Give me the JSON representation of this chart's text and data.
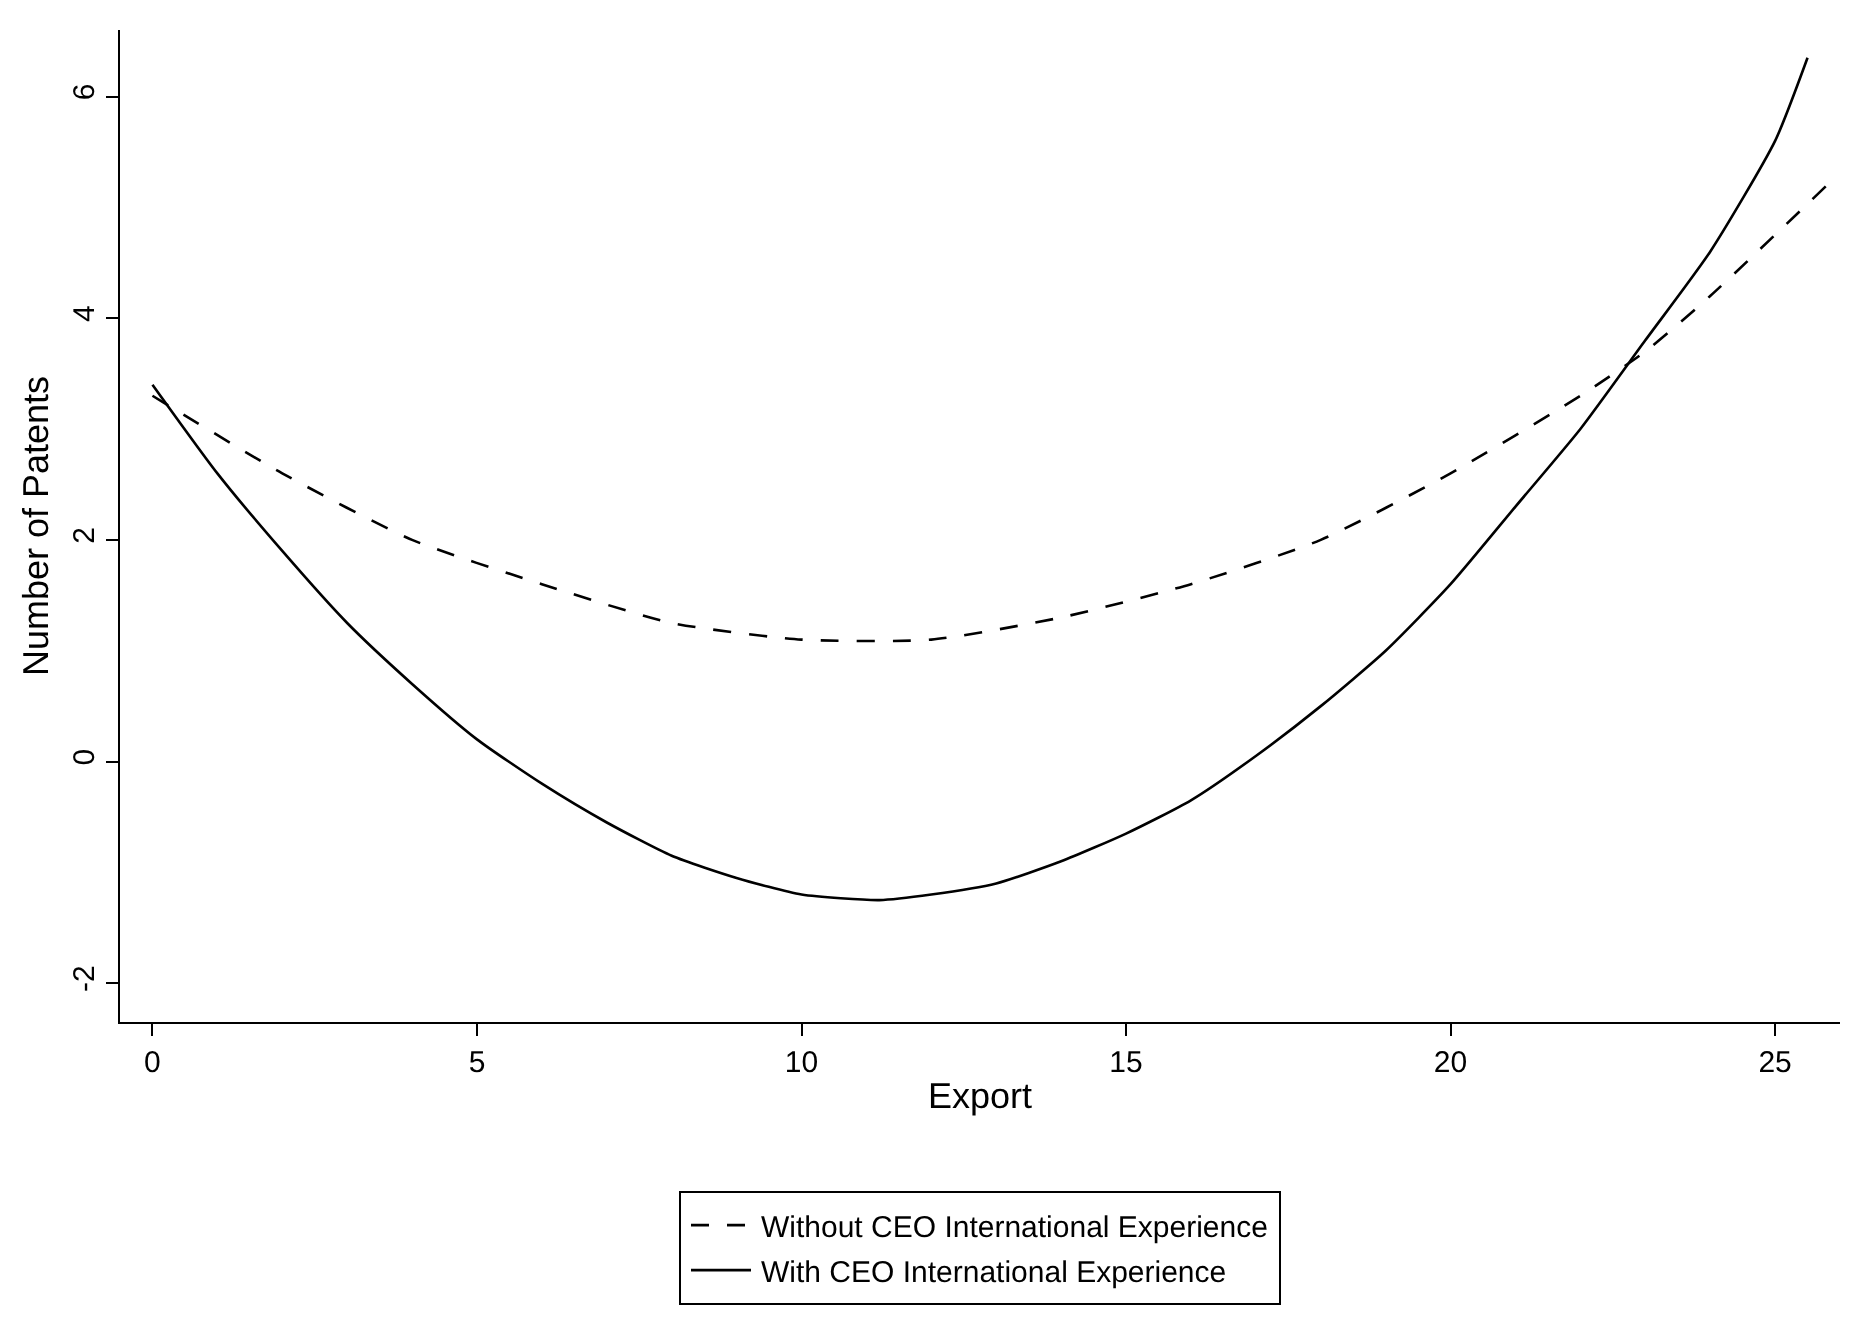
{
  "chart_data": {
    "type": "line",
    "xlabel": "Export",
    "ylabel": "Number of Patents",
    "xlim": [
      -0.5,
      26
    ],
    "xticks": [
      0,
      5,
      10,
      15,
      20,
      25
    ],
    "ylim": [
      -2.35,
      6.6
    ],
    "yticks": [
      -2,
      0,
      2,
      4,
      6
    ],
    "legend": "bottom",
    "series": [
      {
        "name": "Without CEO International Experience",
        "color": "#000000",
        "line_style": "dashed",
        "x": [
          0,
          2,
          4,
          6,
          8,
          10,
          12,
          14,
          16,
          18,
          20,
          22,
          23,
          24,
          25.8
        ],
        "values": [
          3.3,
          2.6,
          2.0,
          1.6,
          1.25,
          1.1,
          1.1,
          1.3,
          1.6,
          2.0,
          2.6,
          3.3,
          3.7,
          4.2,
          5.2
        ]
      },
      {
        "name": "With CEO International Experience",
        "color": "#000000",
        "line_style": "solid",
        "x": [
          0,
          1,
          2,
          3,
          4,
          5,
          6,
          7,
          8,
          9,
          10,
          11.2,
          12,
          13,
          14,
          15,
          16,
          17,
          18,
          19,
          20,
          21,
          22,
          23,
          24,
          25,
          25.5
        ],
        "values": [
          3.4,
          2.6,
          1.9,
          1.25,
          0.7,
          0.2,
          -0.2,
          -0.55,
          -0.85,
          -1.05,
          -1.2,
          -1.25,
          -1.2,
          -1.1,
          -0.9,
          -0.65,
          -0.35,
          0.05,
          0.5,
          1.0,
          1.6,
          2.3,
          3.0,
          3.8,
          4.6,
          5.6,
          6.35
        ]
      }
    ]
  }
}
